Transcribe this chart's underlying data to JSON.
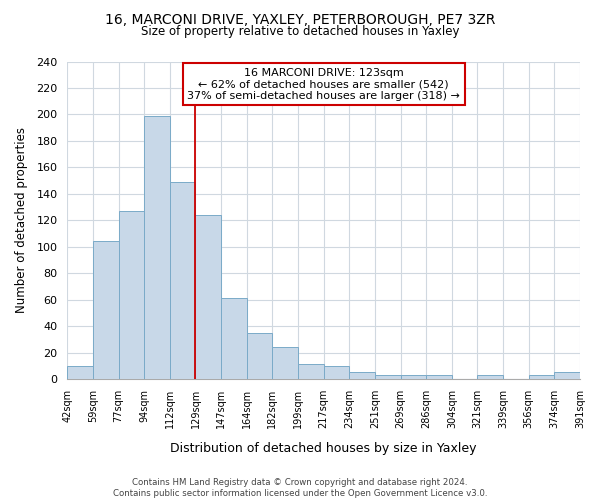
{
  "title1": "16, MARCONI DRIVE, YAXLEY, PETERBOROUGH, PE7 3ZR",
  "title2": "Size of property relative to detached houses in Yaxley",
  "xlabel": "Distribution of detached houses by size in Yaxley",
  "ylabel": "Number of detached properties",
  "bin_labels": [
    "42sqm",
    "59sqm",
    "77sqm",
    "94sqm",
    "112sqm",
    "129sqm",
    "147sqm",
    "164sqm",
    "182sqm",
    "199sqm",
    "217sqm",
    "234sqm",
    "251sqm",
    "269sqm",
    "286sqm",
    "304sqm",
    "321sqm",
    "339sqm",
    "356sqm",
    "374sqm",
    "391sqm"
  ],
  "bar_heights": [
    10,
    104,
    127,
    199,
    149,
    124,
    61,
    35,
    24,
    11,
    10,
    5,
    3,
    3,
    3,
    0,
    3,
    0,
    3,
    5
  ],
  "bar_color": "#c8d8e8",
  "bar_edge_color": "#7aaac8",
  "ylim": [
    0,
    240
  ],
  "yticks": [
    0,
    20,
    40,
    60,
    80,
    100,
    120,
    140,
    160,
    180,
    200,
    220,
    240
  ],
  "vline_x_bin": 5,
  "annotation_title": "16 MARCONI DRIVE: 123sqm",
  "annotation_line1": "← 62% of detached houses are smaller (542)",
  "annotation_line2": "37% of semi-detached houses are larger (318) →",
  "footer1": "Contains HM Land Registry data © Crown copyright and database right 2024.",
  "footer2": "Contains public sector information licensed under the Open Government Licence v3.0.",
  "background_color": "#ffffff",
  "grid_color": "#d0d8e0"
}
